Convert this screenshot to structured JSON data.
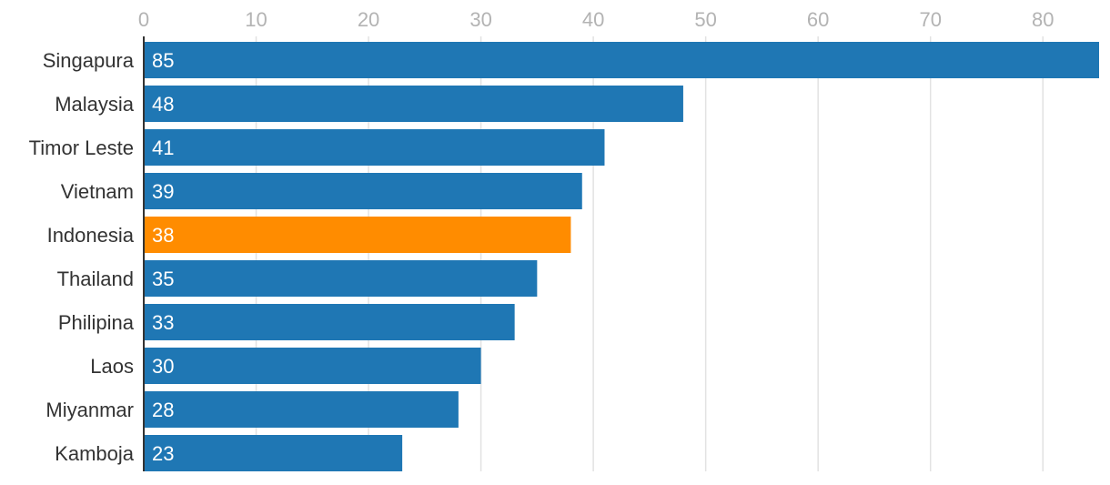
{
  "chart_data": {
    "type": "bar",
    "orientation": "horizontal",
    "categories": [
      "Singapura",
      "Malaysia",
      "Timor Leste",
      "Vietnam",
      "Indonesia",
      "Thailand",
      "Philipina",
      "Laos",
      "Miyanmar",
      "Kamboja"
    ],
    "values": [
      85,
      48,
      41,
      39,
      38,
      35,
      33,
      30,
      28,
      23
    ],
    "highlight_category": "Indonesia",
    "colors": {
      "default": "#1f77b4",
      "highlight": "#ff8c00"
    },
    "xlim": [
      0,
      85
    ],
    "xticks": [
      0,
      10,
      20,
      30,
      40,
      50,
      60,
      70,
      80
    ],
    "xaxis_position": "top",
    "grid": true,
    "title": "",
    "xlabel": "",
    "ylabel": ""
  }
}
